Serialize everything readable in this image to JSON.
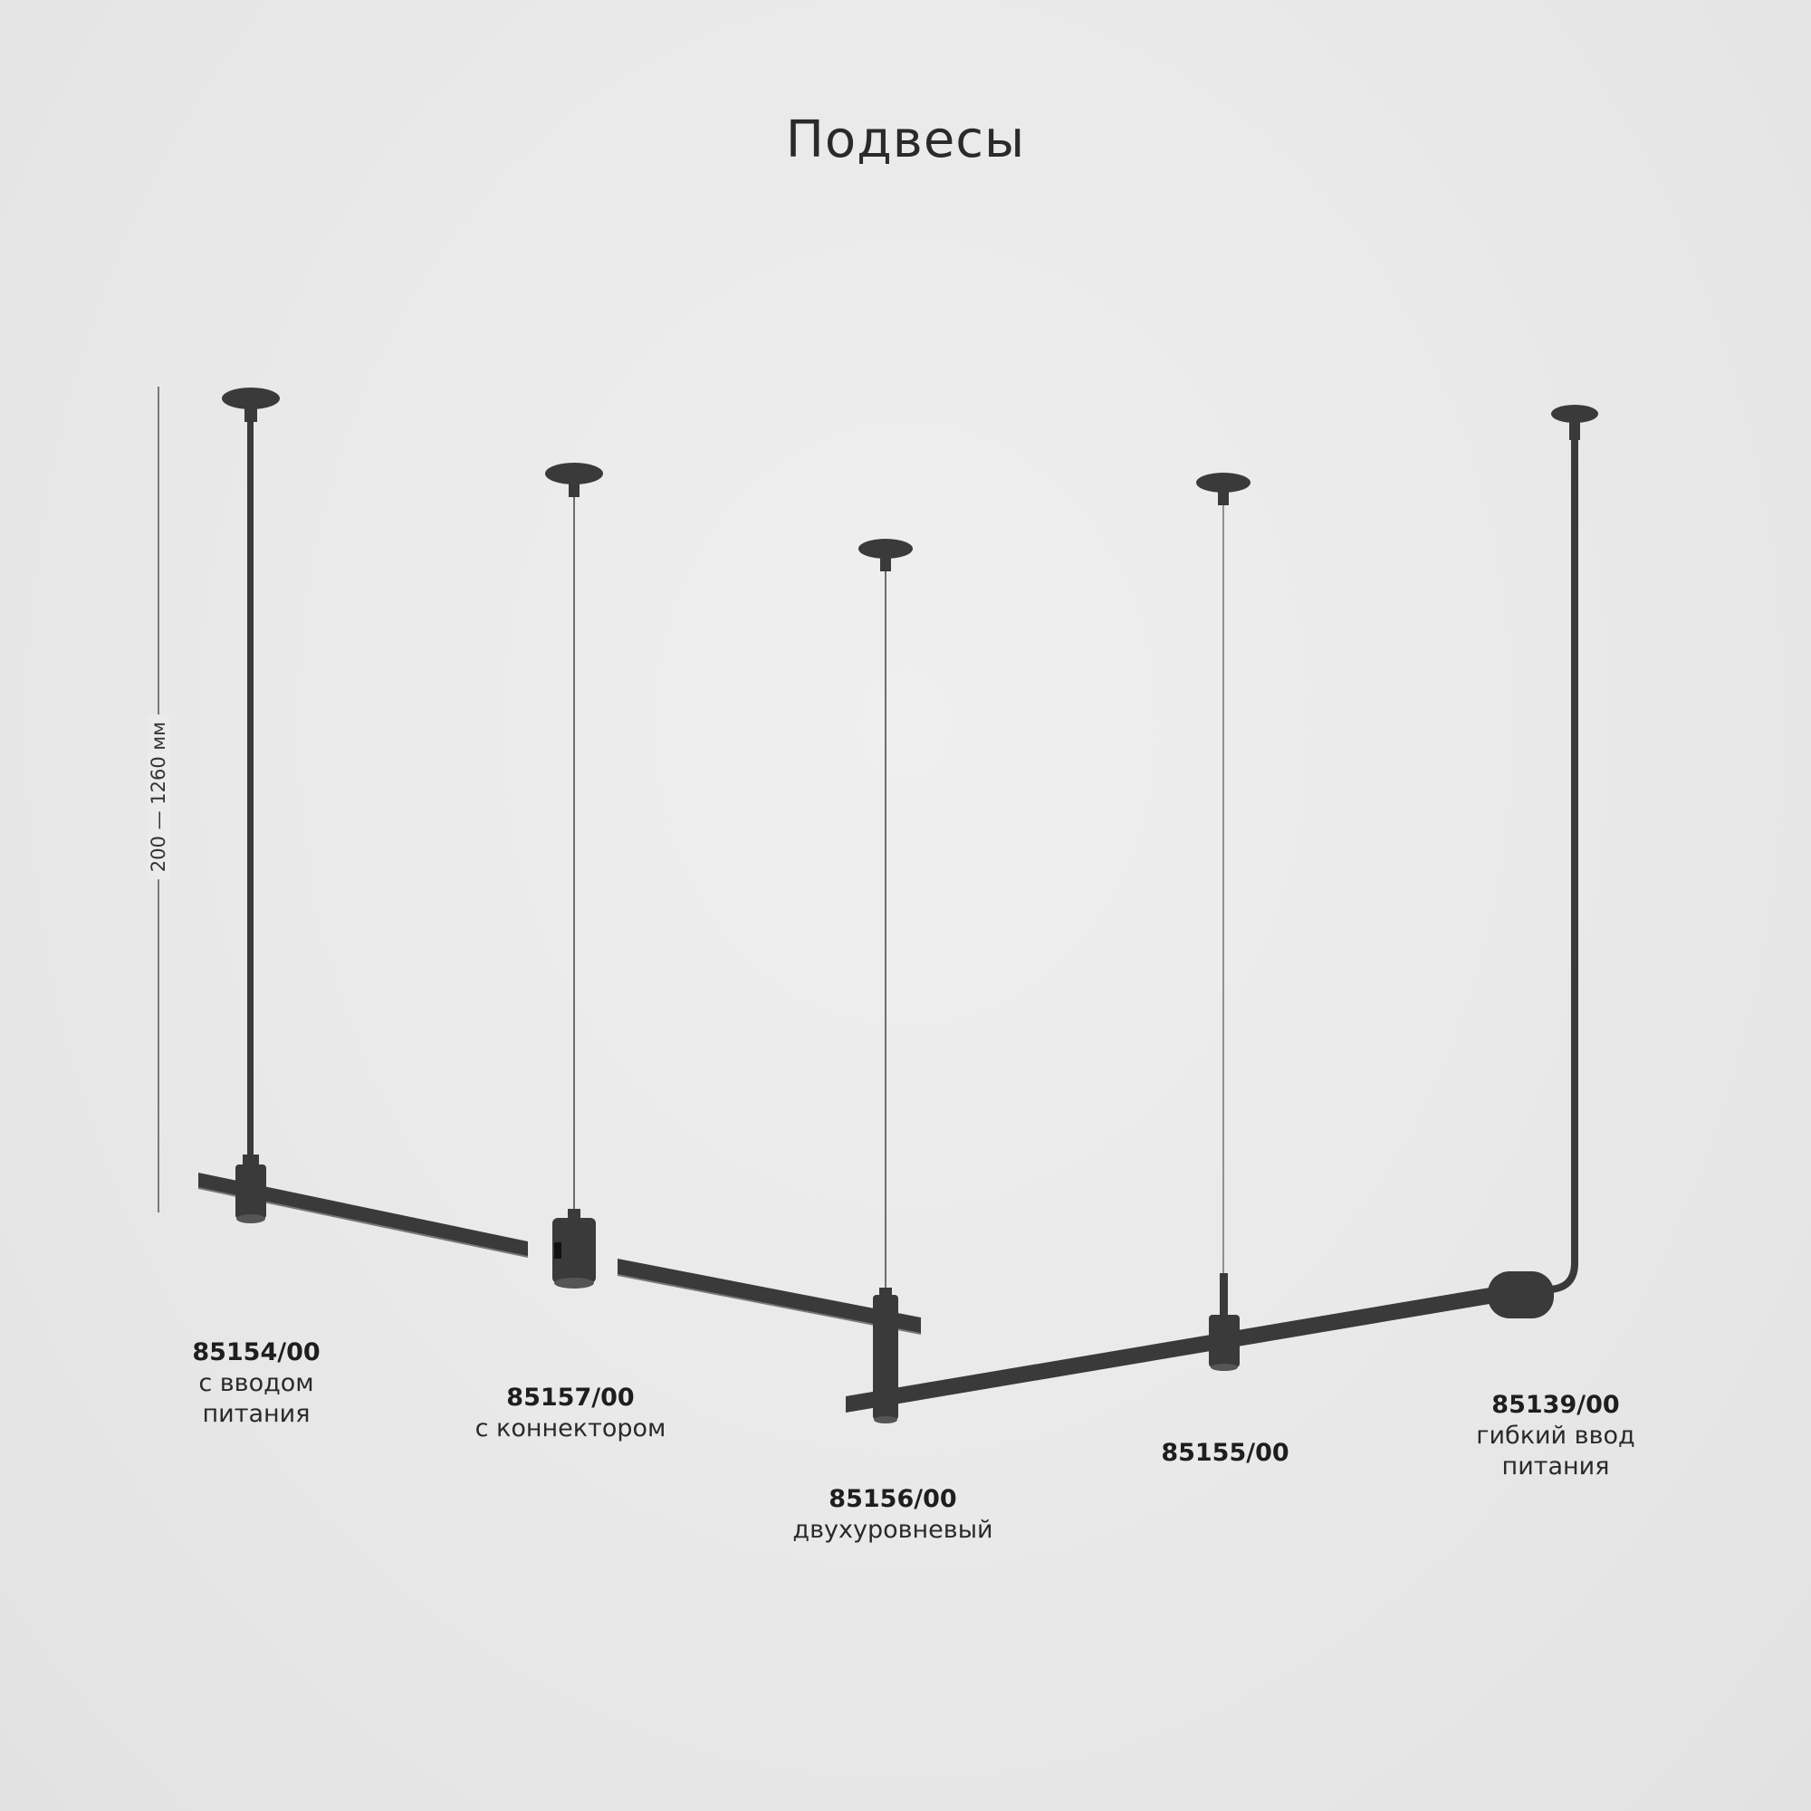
{
  "title": "Подвесы",
  "dimension": {
    "label": "200 — 1260 мм"
  },
  "colors": {
    "background": "#e9e9e9",
    "product": "#3a3a3a",
    "text": "#1e1e1e"
  },
  "products": [
    {
      "code": "85154/00",
      "description": [
        "с вводом",
        "питания"
      ]
    },
    {
      "code": "85157/00",
      "description": [
        "с коннектором"
      ]
    },
    {
      "code": "85156/00",
      "description": [
        "двухуровневый"
      ]
    },
    {
      "code": "85155/00",
      "description": []
    },
    {
      "code": "85139/00",
      "description": [
        "гибкий ввод",
        "питания"
      ]
    }
  ]
}
